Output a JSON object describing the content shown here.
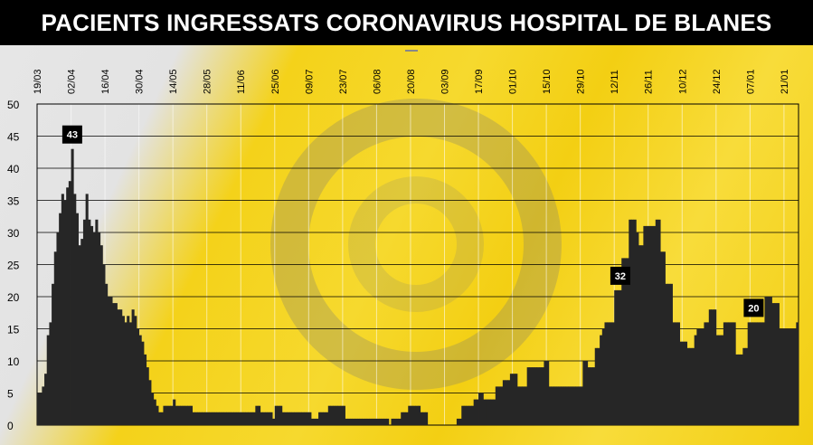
{
  "title": "PACIENTS INGRESSATS CORONAVIRUS HOSPITAL DE BLANES",
  "colors": {
    "bars": "#262626",
    "background_yellow": "#f4d21a",
    "background_grey": "#e4e4e4",
    "title_bg": "#000000",
    "grid": "#000000"
  },
  "chart_data": {
    "type": "bar",
    "title": "PACIENTS INGRESSATS CORONAVIRUS HOSPITAL DE BLANES",
    "xlabel": "",
    "ylabel": "",
    "ylim": [
      0,
      50
    ],
    "yticks": [
      0,
      5,
      10,
      15,
      20,
      25,
      30,
      35,
      40,
      45,
      50
    ],
    "grid": true,
    "x_start": "19/03",
    "x_ticks": [
      "19/03",
      "02/04",
      "16/04",
      "30/04",
      "14/05",
      "28/05",
      "11/06",
      "25/06",
      "09/07",
      "23/07",
      "06/08",
      "20/08",
      "03/09",
      "17/09",
      "01/10",
      "15/10",
      "29/10",
      "12/11",
      "26/11",
      "10/12",
      "24/12",
      "07/01",
      "21/01"
    ],
    "annotations": [
      {
        "label": "43",
        "day_index": 14
      },
      {
        "label": "32",
        "day_index": 240
      },
      {
        "label": "20",
        "day_index": 295
      }
    ],
    "values": [
      5,
      5,
      6,
      8,
      14,
      16,
      22,
      27,
      30,
      33,
      36,
      35,
      37,
      38,
      43,
      36,
      33,
      28,
      29,
      32,
      36,
      32,
      31,
      30,
      32,
      30,
      28,
      25,
      22,
      20,
      20,
      19,
      19,
      18,
      18,
      17,
      16,
      17,
      16,
      18,
      17,
      15,
      14,
      13,
      11,
      9,
      7,
      5,
      4,
      3,
      2,
      2,
      3,
      3,
      3,
      3,
      4,
      3,
      3,
      3,
      3,
      3,
      3,
      3,
      2,
      2,
      2,
      2,
      2,
      2,
      2,
      2,
      2,
      2,
      2,
      2,
      2,
      2,
      2,
      2,
      2,
      2,
      2,
      2,
      2,
      2,
      2,
      2,
      2,
      2,
      3,
      3,
      2,
      2,
      2,
      2,
      2,
      1,
      3,
      3,
      3,
      2,
      2,
      2,
      2,
      2,
      2,
      2,
      2,
      2,
      2,
      2,
      2,
      1,
      1,
      1,
      2,
      2,
      2,
      2,
      3,
      3,
      3,
      3,
      3,
      3,
      3,
      1,
      1,
      1,
      1,
      1,
      1,
      1,
      1,
      1,
      1,
      1,
      1,
      1,
      1,
      1,
      1,
      1,
      1,
      0,
      1,
      1,
      1,
      1,
      2,
      2,
      2,
      3,
      3,
      3,
      3,
      3,
      2,
      2,
      2,
      0,
      0,
      0,
      0,
      0,
      0,
      0,
      0,
      0,
      0,
      0,
      0,
      1,
      1,
      3,
      3,
      3,
      3,
      3,
      4,
      4,
      5,
      5,
      4,
      4,
      4,
      4,
      4,
      6,
      6,
      6,
      7,
      7,
      7,
      8,
      8,
      8,
      6,
      6,
      6,
      6,
      9,
      9,
      9,
      9,
      9,
      9,
      9,
      10,
      10,
      6,
      6,
      6,
      6,
      6,
      6,
      6,
      6,
      6,
      6,
      6,
      6,
      6,
      6,
      10,
      10,
      9,
      9,
      9,
      12,
      12,
      14,
      15,
      16,
      16,
      16,
      16,
      21,
      21,
      21,
      26,
      26,
      26,
      32,
      32,
      32,
      30,
      28,
      28,
      31,
      31,
      31,
      31,
      31,
      32,
      32,
      27,
      27,
      22,
      22,
      22,
      16,
      16,
      16,
      13,
      13,
      13,
      12,
      12,
      12,
      14,
      15,
      15,
      15,
      16,
      16,
      18,
      18,
      18,
      14,
      14,
      14,
      16,
      16,
      16,
      16,
      16,
      11,
      11,
      11,
      12,
      12,
      16,
      16,
      16,
      16,
      16,
      16,
      16,
      20,
      20,
      20,
      19,
      19,
      19,
      15,
      15,
      15,
      15,
      15,
      15,
      15,
      16
    ]
  }
}
